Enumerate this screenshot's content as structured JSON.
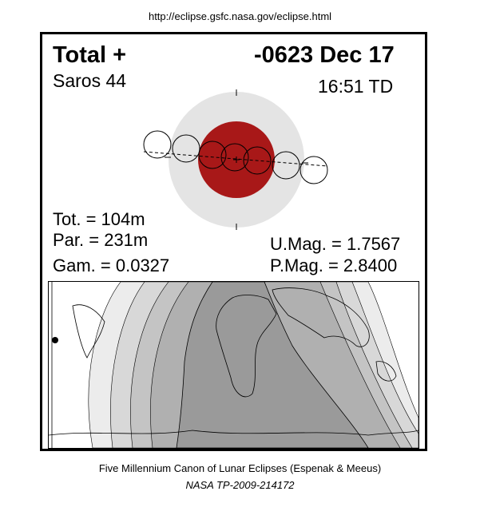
{
  "header": {
    "url": "http://eclipse.gsfc.nasa.gov/eclipse.html"
  },
  "eclipse": {
    "type": "Total  +",
    "date": "-0623 Dec 17",
    "saros": "Saros  44",
    "time": "16:51 TD",
    "total_duration": "Tot. = 104m",
    "partial_duration": "Par. = 231m",
    "gamma": "Gam. = 0.0327",
    "umbral_magnitude": "U.Mag. = 1.7567",
    "penumbral_magnitude": "P.Mag. = 2.8400"
  },
  "colors": {
    "umbra": "#a81818",
    "penumbra": "#e4e4e4",
    "map_night": "#9a9a9a",
    "map_band": [
      "#ffffff",
      "#ececec",
      "#d8d8d8",
      "#c4c4c4",
      "#b0b0b0"
    ]
  },
  "footer": {
    "caption": "Five Millennium Canon of Lunar Eclipses (Espenak & Meeus)",
    "reference": "NASA TP-2009-214172"
  }
}
